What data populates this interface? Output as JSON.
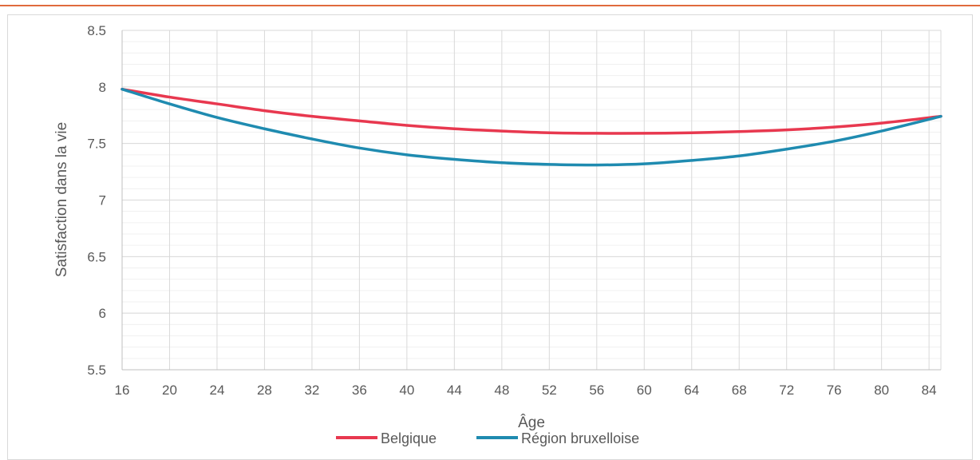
{
  "chart_data": {
    "type": "line",
    "xlabel": "Âge",
    "ylabel": "Satisfaction dans la vie",
    "xlim": [
      16,
      85
    ],
    "ylim": [
      5.5,
      8.5
    ],
    "x_ticks": [
      16,
      20,
      24,
      28,
      32,
      36,
      40,
      44,
      48,
      52,
      56,
      60,
      64,
      68,
      72,
      76,
      80,
      84
    ],
    "y_ticks": [
      "5.5",
      "6",
      "6.5",
      "7",
      "7.5",
      "8",
      "8.5"
    ],
    "grid": true,
    "legend_position": "bottom",
    "x": [
      16,
      20,
      24,
      28,
      32,
      36,
      40,
      44,
      48,
      52,
      56,
      60,
      64,
      68,
      72,
      76,
      80,
      85
    ],
    "series": [
      {
        "name": "Belgique",
        "color": "#e8384f",
        "values": [
          7.98,
          7.91,
          7.85,
          7.79,
          7.74,
          7.7,
          7.66,
          7.63,
          7.61,
          7.595,
          7.59,
          7.59,
          7.595,
          7.605,
          7.62,
          7.645,
          7.68,
          7.74
        ]
      },
      {
        "name": "Région bruxelloise",
        "color": "#1f8bb0",
        "values": [
          7.98,
          7.85,
          7.73,
          7.63,
          7.54,
          7.46,
          7.4,
          7.36,
          7.33,
          7.315,
          7.31,
          7.32,
          7.35,
          7.39,
          7.45,
          7.52,
          7.61,
          7.74
        ]
      }
    ]
  }
}
